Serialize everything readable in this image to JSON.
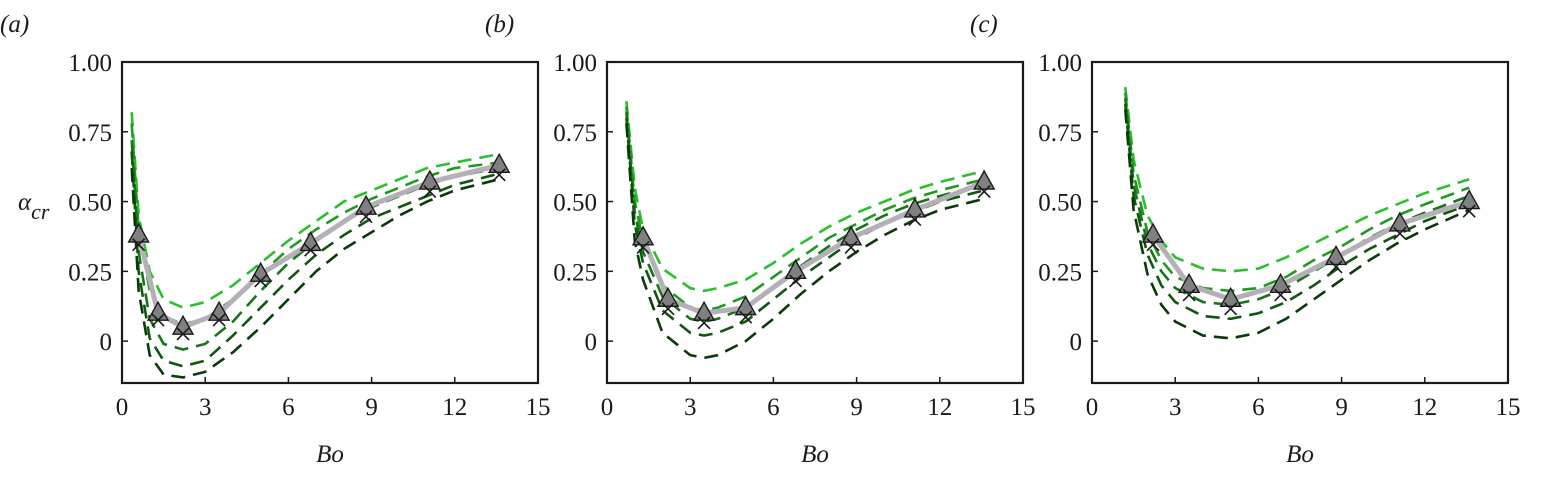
{
  "chart_data": [
    {
      "type": "line",
      "panel_label": "(a)",
      "xlabel": "Bo",
      "ylabel": "α",
      "ylabel_subscript": "cr",
      "xlim": [
        0,
        15
      ],
      "xticks": [
        0,
        3,
        6,
        9,
        12,
        15
      ],
      "ylim": [
        -0.15,
        1
      ],
      "yticks": [
        0,
        {
          "value": 0.25,
          "label": "0.25"
        },
        {
          "value": 0.5,
          "label": "0.50"
        },
        {
          "value": 0.75,
          "label": "0.75"
        },
        {
          "value": 1,
          "label": "1.00"
        }
      ],
      "series": [
        {
          "color": "#2bbf2b",
          "dashed": true,
          "x": [
            0.35,
            0.6,
            1,
            1.5,
            2.2,
            3,
            4,
            5,
            6,
            7,
            8,
            9,
            10,
            11,
            12,
            13.6
          ],
          "values": [
            0.82,
            0.45,
            0.25,
            0.15,
            0.12,
            0.14,
            0.2,
            0.28,
            0.36,
            0.43,
            0.5,
            0.54,
            0.58,
            0.62,
            0.64,
            0.67
          ]
        },
        {
          "color": "#1e9a1e",
          "dashed": true,
          "x": [
            0.35,
            0.6,
            1,
            1.5,
            2.2,
            3,
            4,
            5,
            6,
            7,
            8,
            9,
            10,
            11,
            12,
            13.6
          ],
          "values": [
            0.78,
            0.4,
            0.18,
            0.09,
            0.06,
            0.08,
            0.15,
            0.24,
            0.33,
            0.4,
            0.46,
            0.51,
            0.55,
            0.59,
            0.62,
            0.64
          ]
        },
        {
          "color": "#167616",
          "dashed": true,
          "x": [
            0.35,
            0.6,
            1,
            1.5,
            2.2,
            3,
            4,
            5,
            6,
            7,
            8,
            9,
            10,
            11,
            12,
            13.6
          ],
          "values": [
            0.72,
            0.32,
            0.08,
            -0.01,
            -0.03,
            -0.01,
            0.07,
            0.18,
            0.28,
            0.36,
            0.43,
            0.48,
            0.52,
            0.56,
            0.59,
            0.62
          ]
        },
        {
          "color": "#0f560f",
          "dashed": true,
          "x": [
            0.35,
            0.6,
            1,
            1.5,
            2.2,
            3,
            4,
            5,
            6,
            7,
            8,
            9,
            10,
            11,
            12,
            13.6
          ],
          "values": [
            0.68,
            0.25,
            0.01,
            -0.07,
            -0.09,
            -0.07,
            0.02,
            0.12,
            0.22,
            0.31,
            0.38,
            0.44,
            0.48,
            0.52,
            0.56,
            0.6
          ]
        },
        {
          "color": "#0a3a0a",
          "dashed": true,
          "x": [
            0.35,
            0.6,
            1,
            1.5,
            2.2,
            3,
            4,
            5,
            6,
            7,
            8,
            9,
            10,
            11,
            12,
            13.6
          ],
          "values": [
            0.62,
            0.18,
            -0.05,
            -0.12,
            -0.13,
            -0.11,
            -0.04,
            0.05,
            0.15,
            0.25,
            0.33,
            0.39,
            0.45,
            0.5,
            0.54,
            0.58
          ]
        },
        {
          "color": "#b5b0b8",
          "marker": "triangle",
          "marker_color": "#808080",
          "x": [
            0.6,
            1.3,
            2.2,
            3.5,
            5,
            6.8,
            8.8,
            11.1,
            13.6
          ],
          "values": [
            0.38,
            0.1,
            0.05,
            0.1,
            0.24,
            0.35,
            0.48,
            0.57,
            0.63
          ]
        },
        {
          "color": "#1a1a1a",
          "marker": "cross",
          "x": [
            0.6,
            1.3,
            2.2,
            3.5,
            5,
            6.8,
            8.8,
            11.1,
            13.6
          ],
          "values": [
            0.36,
            0.09,
            0.04,
            0.09,
            0.23,
            0.34,
            0.46,
            0.55,
            0.61
          ]
        }
      ]
    },
    {
      "type": "line",
      "panel_label": "(b)",
      "xlabel": "Bo",
      "xlim": [
        0,
        15
      ],
      "xticks": [
        0,
        3,
        6,
        9,
        12,
        15
      ],
      "ylim": [
        -0.15,
        1
      ],
      "yticks": [
        0,
        {
          "value": 0.25,
          "label": "0.25"
        },
        {
          "value": 0.5,
          "label": "0.50"
        },
        {
          "value": 0.75,
          "label": "0.75"
        },
        {
          "value": 1,
          "label": "1.00"
        }
      ],
      "series": [
        {
          "color": "#2bbf2b",
          "dashed": true,
          "x": [
            0.7,
            1,
            1.3,
            2,
            3,
            3.5,
            4,
            5,
            6,
            7,
            8,
            9,
            10,
            11,
            12,
            13.6
          ],
          "values": [
            0.86,
            0.55,
            0.4,
            0.26,
            0.19,
            0.18,
            0.19,
            0.22,
            0.28,
            0.35,
            0.41,
            0.46,
            0.5,
            0.54,
            0.57,
            0.61
          ]
        },
        {
          "color": "#1e9a1e",
          "dashed": true,
          "x": [
            0.7,
            1,
            1.3,
            2,
            3,
            3.5,
            4,
            5,
            6,
            7,
            8,
            9,
            10,
            11,
            12,
            13.6
          ],
          "values": [
            0.84,
            0.5,
            0.36,
            0.2,
            0.12,
            0.11,
            0.12,
            0.16,
            0.23,
            0.3,
            0.37,
            0.42,
            0.47,
            0.51,
            0.54,
            0.58
          ]
        },
        {
          "color": "#167616",
          "dashed": true,
          "x": [
            0.7,
            1,
            1.3,
            2,
            3,
            3.5,
            4,
            5,
            6,
            7,
            8,
            9,
            10,
            11,
            12,
            13.6
          ],
          "values": [
            0.82,
            0.46,
            0.32,
            0.16,
            0.08,
            0.07,
            0.08,
            0.12,
            0.19,
            0.27,
            0.34,
            0.4,
            0.45,
            0.49,
            0.52,
            0.56
          ]
        },
        {
          "color": "#0f560f",
          "dashed": true,
          "x": [
            0.7,
            1,
            1.3,
            2,
            3,
            3.5,
            4,
            5,
            6,
            7,
            8,
            9,
            10,
            11,
            12,
            13.6
          ],
          "values": [
            0.8,
            0.42,
            0.28,
            0.11,
            0.03,
            0.02,
            0.03,
            0.07,
            0.15,
            0.23,
            0.3,
            0.37,
            0.42,
            0.46,
            0.5,
            0.54
          ]
        },
        {
          "color": "#0a3a0a",
          "dashed": true,
          "x": [
            0.7,
            1,
            1.3,
            2,
            3,
            3.5,
            4,
            5,
            6,
            7,
            8,
            9,
            10,
            11,
            12,
            13.6
          ],
          "values": [
            0.78,
            0.36,
            0.22,
            0.03,
            -0.05,
            -0.06,
            -0.05,
            0,
            0.08,
            0.17,
            0.25,
            0.32,
            0.38,
            0.43,
            0.47,
            0.51
          ]
        },
        {
          "color": "#b5b0b8",
          "marker": "triangle",
          "marker_color": "#808080",
          "x": [
            1.3,
            2.2,
            3.5,
            5,
            6.8,
            8.8,
            11.1,
            13.6
          ],
          "values": [
            0.37,
            0.15,
            0.1,
            0.12,
            0.25,
            0.37,
            0.47,
            0.57
          ]
        },
        {
          "color": "#1a1a1a",
          "marker": "cross",
          "x": [
            1.3,
            2.2,
            3.5,
            5,
            6.8,
            8.8,
            11.1,
            13.6
          ],
          "values": [
            0.35,
            0.13,
            0.08,
            0.1,
            0.23,
            0.35,
            0.45,
            0.55
          ]
        }
      ]
    },
    {
      "type": "line",
      "panel_label": "(c)",
      "xlabel": "Bo",
      "xlim": [
        0,
        15
      ],
      "xticks": [
        0,
        3,
        6,
        9,
        12,
        15
      ],
      "ylim": [
        -0.15,
        1
      ],
      "yticks": [
        0,
        {
          "value": 0.25,
          "label": "0.25"
        },
        {
          "value": 0.5,
          "label": "0.50"
        },
        {
          "value": 0.75,
          "label": "0.75"
        },
        {
          "value": 1,
          "label": "1.00"
        }
      ],
      "series": [
        {
          "color": "#2bbf2b",
          "dashed": true,
          "x": [
            1.2,
            1.5,
            2,
            2.5,
            3,
            4,
            5,
            6,
            7,
            8,
            9,
            10,
            11,
            12,
            13.6
          ],
          "values": [
            0.91,
            0.65,
            0.45,
            0.36,
            0.3,
            0.26,
            0.25,
            0.26,
            0.3,
            0.35,
            0.4,
            0.45,
            0.49,
            0.53,
            0.58
          ]
        },
        {
          "color": "#1e9a1e",
          "dashed": true,
          "x": [
            1.2,
            1.5,
            2,
            2.5,
            3,
            4,
            5,
            6,
            7,
            8,
            9,
            10,
            11,
            12,
            13.6
          ],
          "values": [
            0.89,
            0.6,
            0.39,
            0.29,
            0.23,
            0.19,
            0.18,
            0.19,
            0.23,
            0.29,
            0.34,
            0.4,
            0.45,
            0.49,
            0.55
          ]
        },
        {
          "color": "#167616",
          "dashed": true,
          "x": [
            1.2,
            1.5,
            2,
            2.5,
            3,
            4,
            5,
            6,
            7,
            8,
            9,
            10,
            11,
            12,
            13.6
          ],
          "values": [
            0.87,
            0.56,
            0.35,
            0.25,
            0.19,
            0.14,
            0.13,
            0.15,
            0.19,
            0.25,
            0.31,
            0.37,
            0.42,
            0.46,
            0.52
          ]
        },
        {
          "color": "#0f560f",
          "dashed": true,
          "x": [
            1.2,
            1.5,
            2,
            2.5,
            3,
            4,
            5,
            6,
            7,
            8,
            9,
            10,
            11,
            12,
            13.6
          ],
          "values": [
            0.85,
            0.52,
            0.31,
            0.2,
            0.14,
            0.09,
            0.08,
            0.1,
            0.14,
            0.2,
            0.27,
            0.33,
            0.38,
            0.43,
            0.49
          ]
        },
        {
          "color": "#0a3a0a",
          "dashed": true,
          "x": [
            1.2,
            1.5,
            2,
            2.5,
            3,
            4,
            5,
            6,
            7,
            8,
            9,
            10,
            11,
            12,
            13.6
          ],
          "values": [
            0.83,
            0.47,
            0.24,
            0.13,
            0.07,
            0.02,
            0.01,
            0.03,
            0.08,
            0.15,
            0.22,
            0.29,
            0.35,
            0.4,
            0.47
          ]
        },
        {
          "color": "#b5b0b8",
          "marker": "triangle",
          "marker_color": "#808080",
          "x": [
            2.2,
            3.5,
            5,
            6.8,
            8.8,
            11.1,
            13.6
          ],
          "values": [
            0.38,
            0.2,
            0.15,
            0.2,
            0.3,
            0.42,
            0.5
          ]
        },
        {
          "color": "#1a1a1a",
          "marker": "cross",
          "x": [
            2.2,
            3.5,
            5,
            6.8,
            8.8,
            11.1,
            13.6
          ],
          "values": [
            0.36,
            0.18,
            0.13,
            0.18,
            0.28,
            0.4,
            0.48
          ]
        }
      ]
    }
  ]
}
